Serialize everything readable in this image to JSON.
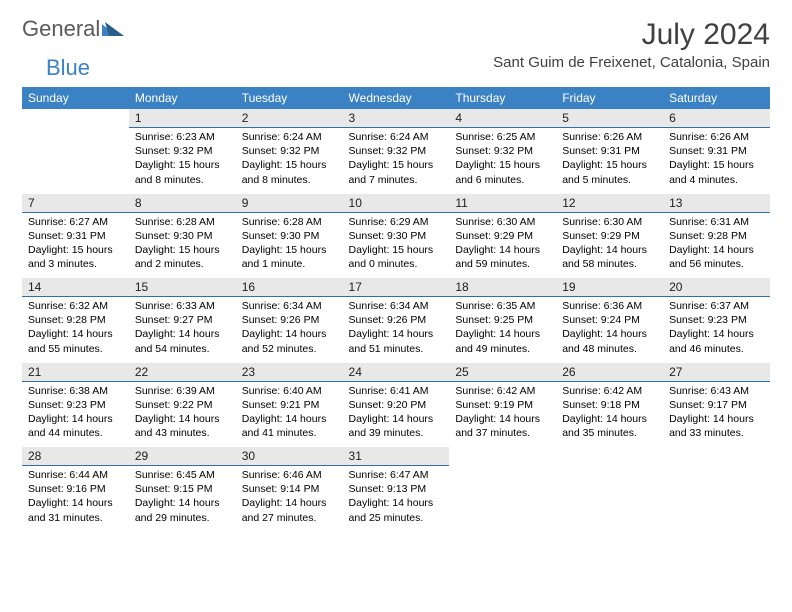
{
  "logo": {
    "text1": "General",
    "text2": "Blue"
  },
  "header": {
    "month_year": "July 2024",
    "location": "Sant Guim de Freixenet, Catalonia, Spain"
  },
  "colors": {
    "header_bg": "#3b82c4",
    "daynum_bg": "#e8e8e8",
    "daynum_divider": "#2f6ea8",
    "page_bg": "#ffffff",
    "text": "#000000",
    "title_text": "#404040",
    "logo_gray": "#5a5a5a",
    "logo_blue": "#3b82c4"
  },
  "fonts": {
    "month_year_pt": 30,
    "location_pt": 15,
    "weekday_pt": 12,
    "daynum_pt": 12,
    "body_pt": 10.5
  },
  "weekdays": [
    "Sunday",
    "Monday",
    "Tuesday",
    "Wednesday",
    "Thursday",
    "Friday",
    "Saturday"
  ],
  "weeks": [
    {
      "nums": [
        "",
        "1",
        "2",
        "3",
        "4",
        "5",
        "6"
      ],
      "cells": [
        null,
        {
          "sunrise": "Sunrise: 6:23 AM",
          "sunset": "Sunset: 9:32 PM",
          "daylight": "Daylight: 15 hours and 8 minutes."
        },
        {
          "sunrise": "Sunrise: 6:24 AM",
          "sunset": "Sunset: 9:32 PM",
          "daylight": "Daylight: 15 hours and 8 minutes."
        },
        {
          "sunrise": "Sunrise: 6:24 AM",
          "sunset": "Sunset: 9:32 PM",
          "daylight": "Daylight: 15 hours and 7 minutes."
        },
        {
          "sunrise": "Sunrise: 6:25 AM",
          "sunset": "Sunset: 9:32 PM",
          "daylight": "Daylight: 15 hours and 6 minutes."
        },
        {
          "sunrise": "Sunrise: 6:26 AM",
          "sunset": "Sunset: 9:31 PM",
          "daylight": "Daylight: 15 hours and 5 minutes."
        },
        {
          "sunrise": "Sunrise: 6:26 AM",
          "sunset": "Sunset: 9:31 PM",
          "daylight": "Daylight: 15 hours and 4 minutes."
        }
      ]
    },
    {
      "nums": [
        "7",
        "8",
        "9",
        "10",
        "11",
        "12",
        "13"
      ],
      "cells": [
        {
          "sunrise": "Sunrise: 6:27 AM",
          "sunset": "Sunset: 9:31 PM",
          "daylight": "Daylight: 15 hours and 3 minutes."
        },
        {
          "sunrise": "Sunrise: 6:28 AM",
          "sunset": "Sunset: 9:30 PM",
          "daylight": "Daylight: 15 hours and 2 minutes."
        },
        {
          "sunrise": "Sunrise: 6:28 AM",
          "sunset": "Sunset: 9:30 PM",
          "daylight": "Daylight: 15 hours and 1 minute."
        },
        {
          "sunrise": "Sunrise: 6:29 AM",
          "sunset": "Sunset: 9:30 PM",
          "daylight": "Daylight: 15 hours and 0 minutes."
        },
        {
          "sunrise": "Sunrise: 6:30 AM",
          "sunset": "Sunset: 9:29 PM",
          "daylight": "Daylight: 14 hours and 59 minutes."
        },
        {
          "sunrise": "Sunrise: 6:30 AM",
          "sunset": "Sunset: 9:29 PM",
          "daylight": "Daylight: 14 hours and 58 minutes."
        },
        {
          "sunrise": "Sunrise: 6:31 AM",
          "sunset": "Sunset: 9:28 PM",
          "daylight": "Daylight: 14 hours and 56 minutes."
        }
      ]
    },
    {
      "nums": [
        "14",
        "15",
        "16",
        "17",
        "18",
        "19",
        "20"
      ],
      "cells": [
        {
          "sunrise": "Sunrise: 6:32 AM",
          "sunset": "Sunset: 9:28 PM",
          "daylight": "Daylight: 14 hours and 55 minutes."
        },
        {
          "sunrise": "Sunrise: 6:33 AM",
          "sunset": "Sunset: 9:27 PM",
          "daylight": "Daylight: 14 hours and 54 minutes."
        },
        {
          "sunrise": "Sunrise: 6:34 AM",
          "sunset": "Sunset: 9:26 PM",
          "daylight": "Daylight: 14 hours and 52 minutes."
        },
        {
          "sunrise": "Sunrise: 6:34 AM",
          "sunset": "Sunset: 9:26 PM",
          "daylight": "Daylight: 14 hours and 51 minutes."
        },
        {
          "sunrise": "Sunrise: 6:35 AM",
          "sunset": "Sunset: 9:25 PM",
          "daylight": "Daylight: 14 hours and 49 minutes."
        },
        {
          "sunrise": "Sunrise: 6:36 AM",
          "sunset": "Sunset: 9:24 PM",
          "daylight": "Daylight: 14 hours and 48 minutes."
        },
        {
          "sunrise": "Sunrise: 6:37 AM",
          "sunset": "Sunset: 9:23 PM",
          "daylight": "Daylight: 14 hours and 46 minutes."
        }
      ]
    },
    {
      "nums": [
        "21",
        "22",
        "23",
        "24",
        "25",
        "26",
        "27"
      ],
      "cells": [
        {
          "sunrise": "Sunrise: 6:38 AM",
          "sunset": "Sunset: 9:23 PM",
          "daylight": "Daylight: 14 hours and 44 minutes."
        },
        {
          "sunrise": "Sunrise: 6:39 AM",
          "sunset": "Sunset: 9:22 PM",
          "daylight": "Daylight: 14 hours and 43 minutes."
        },
        {
          "sunrise": "Sunrise: 6:40 AM",
          "sunset": "Sunset: 9:21 PM",
          "daylight": "Daylight: 14 hours and 41 minutes."
        },
        {
          "sunrise": "Sunrise: 6:41 AM",
          "sunset": "Sunset: 9:20 PM",
          "daylight": "Daylight: 14 hours and 39 minutes."
        },
        {
          "sunrise": "Sunrise: 6:42 AM",
          "sunset": "Sunset: 9:19 PM",
          "daylight": "Daylight: 14 hours and 37 minutes."
        },
        {
          "sunrise": "Sunrise: 6:42 AM",
          "sunset": "Sunset: 9:18 PM",
          "daylight": "Daylight: 14 hours and 35 minutes."
        },
        {
          "sunrise": "Sunrise: 6:43 AM",
          "sunset": "Sunset: 9:17 PM",
          "daylight": "Daylight: 14 hours and 33 minutes."
        }
      ]
    },
    {
      "nums": [
        "28",
        "29",
        "30",
        "31",
        "",
        "",
        ""
      ],
      "cells": [
        {
          "sunrise": "Sunrise: 6:44 AM",
          "sunset": "Sunset: 9:16 PM",
          "daylight": "Daylight: 14 hours and 31 minutes."
        },
        {
          "sunrise": "Sunrise: 6:45 AM",
          "sunset": "Sunset: 9:15 PM",
          "daylight": "Daylight: 14 hours and 29 minutes."
        },
        {
          "sunrise": "Sunrise: 6:46 AM",
          "sunset": "Sunset: 9:14 PM",
          "daylight": "Daylight: 14 hours and 27 minutes."
        },
        {
          "sunrise": "Sunrise: 6:47 AM",
          "sunset": "Sunset: 9:13 PM",
          "daylight": "Daylight: 14 hours and 25 minutes."
        },
        null,
        null,
        null
      ]
    }
  ]
}
